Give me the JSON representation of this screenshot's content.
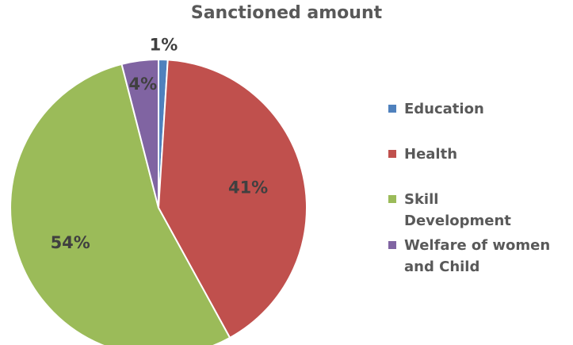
{
  "chart_data": {
    "type": "pie",
    "title": "Sanctioned amount",
    "categories": [
      "Education",
      "Health",
      "Skill Development",
      "Welfare of women and Child"
    ],
    "values": [
      1,
      41,
      54,
      4
    ],
    "labels": [
      "1%",
      "41%",
      "54%",
      "4%"
    ],
    "colors": [
      "#4F81BD",
      "#C0504D",
      "#9BBB59",
      "#8064A2"
    ],
    "legend": "right"
  }
}
